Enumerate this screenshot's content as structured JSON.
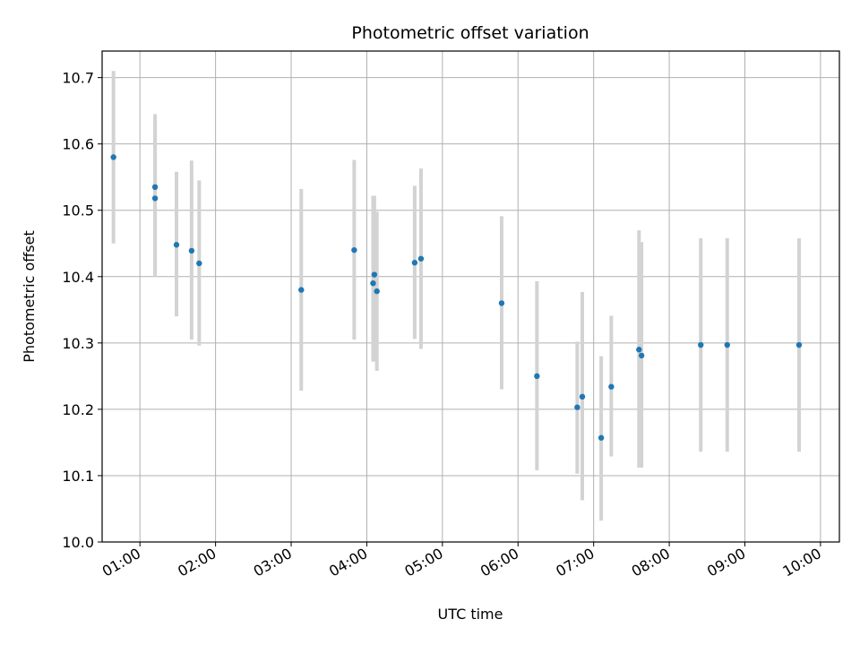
{
  "chart_data": {
    "type": "scatter",
    "title": "Photometric offset variation",
    "xlabel": "UTC time",
    "ylabel": "Photometric offset",
    "ylim": [
      10.0,
      10.74
    ],
    "xlim": [
      "00:30",
      "10:15"
    ],
    "y_ticks": [
      "10.0",
      "10.1",
      "10.2",
      "10.3",
      "10.4",
      "10.5",
      "10.6",
      "10.7"
    ],
    "x_ticks": [
      "01:00",
      "02:00",
      "03:00",
      "04:00",
      "05:00",
      "06:00",
      "07:00",
      "08:00",
      "09:00",
      "10:00"
    ],
    "grid": true,
    "colors": {
      "points": "#1f77b4",
      "errorbars": "#d3d3d3",
      "grid": "#b0b0b0"
    },
    "series": [
      {
        "points": [
          {
            "x": "00:39",
            "y": 10.58,
            "lo": 10.45,
            "hi": 10.71
          },
          {
            "x": "01:12",
            "y": 10.535,
            "lo": 10.4,
            "hi": 10.645
          },
          {
            "x": "01:12",
            "y": 10.518,
            "lo": 10.4,
            "hi": 10.635
          },
          {
            "x": "01:29",
            "y": 10.448,
            "lo": 10.34,
            "hi": 10.558
          },
          {
            "x": "01:41",
            "y": 10.439,
            "lo": 10.305,
            "hi": 10.575
          },
          {
            "x": "01:47",
            "y": 10.42,
            "lo": 10.296,
            "hi": 10.545
          },
          {
            "x": "03:08",
            "y": 10.38,
            "lo": 10.228,
            "hi": 10.532
          },
          {
            "x": "03:50",
            "y": 10.44,
            "lo": 10.305,
            "hi": 10.576
          },
          {
            "x": "04:05",
            "y": 10.39,
            "lo": 10.272,
            "hi": 10.522
          },
          {
            "x": "04:06",
            "y": 10.403,
            "lo": 10.272,
            "hi": 10.522
          },
          {
            "x": "04:08",
            "y": 10.378,
            "lo": 10.258,
            "hi": 10.498
          },
          {
            "x": "04:38",
            "y": 10.421,
            "lo": 10.306,
            "hi": 10.537
          },
          {
            "x": "04:43",
            "y": 10.427,
            "lo": 10.291,
            "hi": 10.563
          },
          {
            "x": "05:47",
            "y": 10.36,
            "lo": 10.23,
            "hi": 10.491
          },
          {
            "x": "06:15",
            "y": 10.25,
            "lo": 10.108,
            "hi": 10.393
          },
          {
            "x": "06:47",
            "y": 10.203,
            "lo": 10.103,
            "hi": 10.302
          },
          {
            "x": "06:51",
            "y": 10.219,
            "lo": 10.063,
            "hi": 10.377
          },
          {
            "x": "07:06",
            "y": 10.157,
            "lo": 10.032,
            "hi": 10.28
          },
          {
            "x": "07:14",
            "y": 10.234,
            "lo": 10.129,
            "hi": 10.341
          },
          {
            "x": "07:36",
            "y": 10.29,
            "lo": 10.112,
            "hi": 10.47
          },
          {
            "x": "07:38",
            "y": 10.281,
            "lo": 10.112,
            "hi": 10.452
          },
          {
            "x": "08:25",
            "y": 10.297,
            "lo": 10.136,
            "hi": 10.458
          },
          {
            "x": "08:46",
            "y": 10.297,
            "lo": 10.136,
            "hi": 10.458
          },
          {
            "x": "09:43",
            "y": 10.297,
            "lo": 10.136,
            "hi": 10.458
          }
        ]
      }
    ]
  }
}
